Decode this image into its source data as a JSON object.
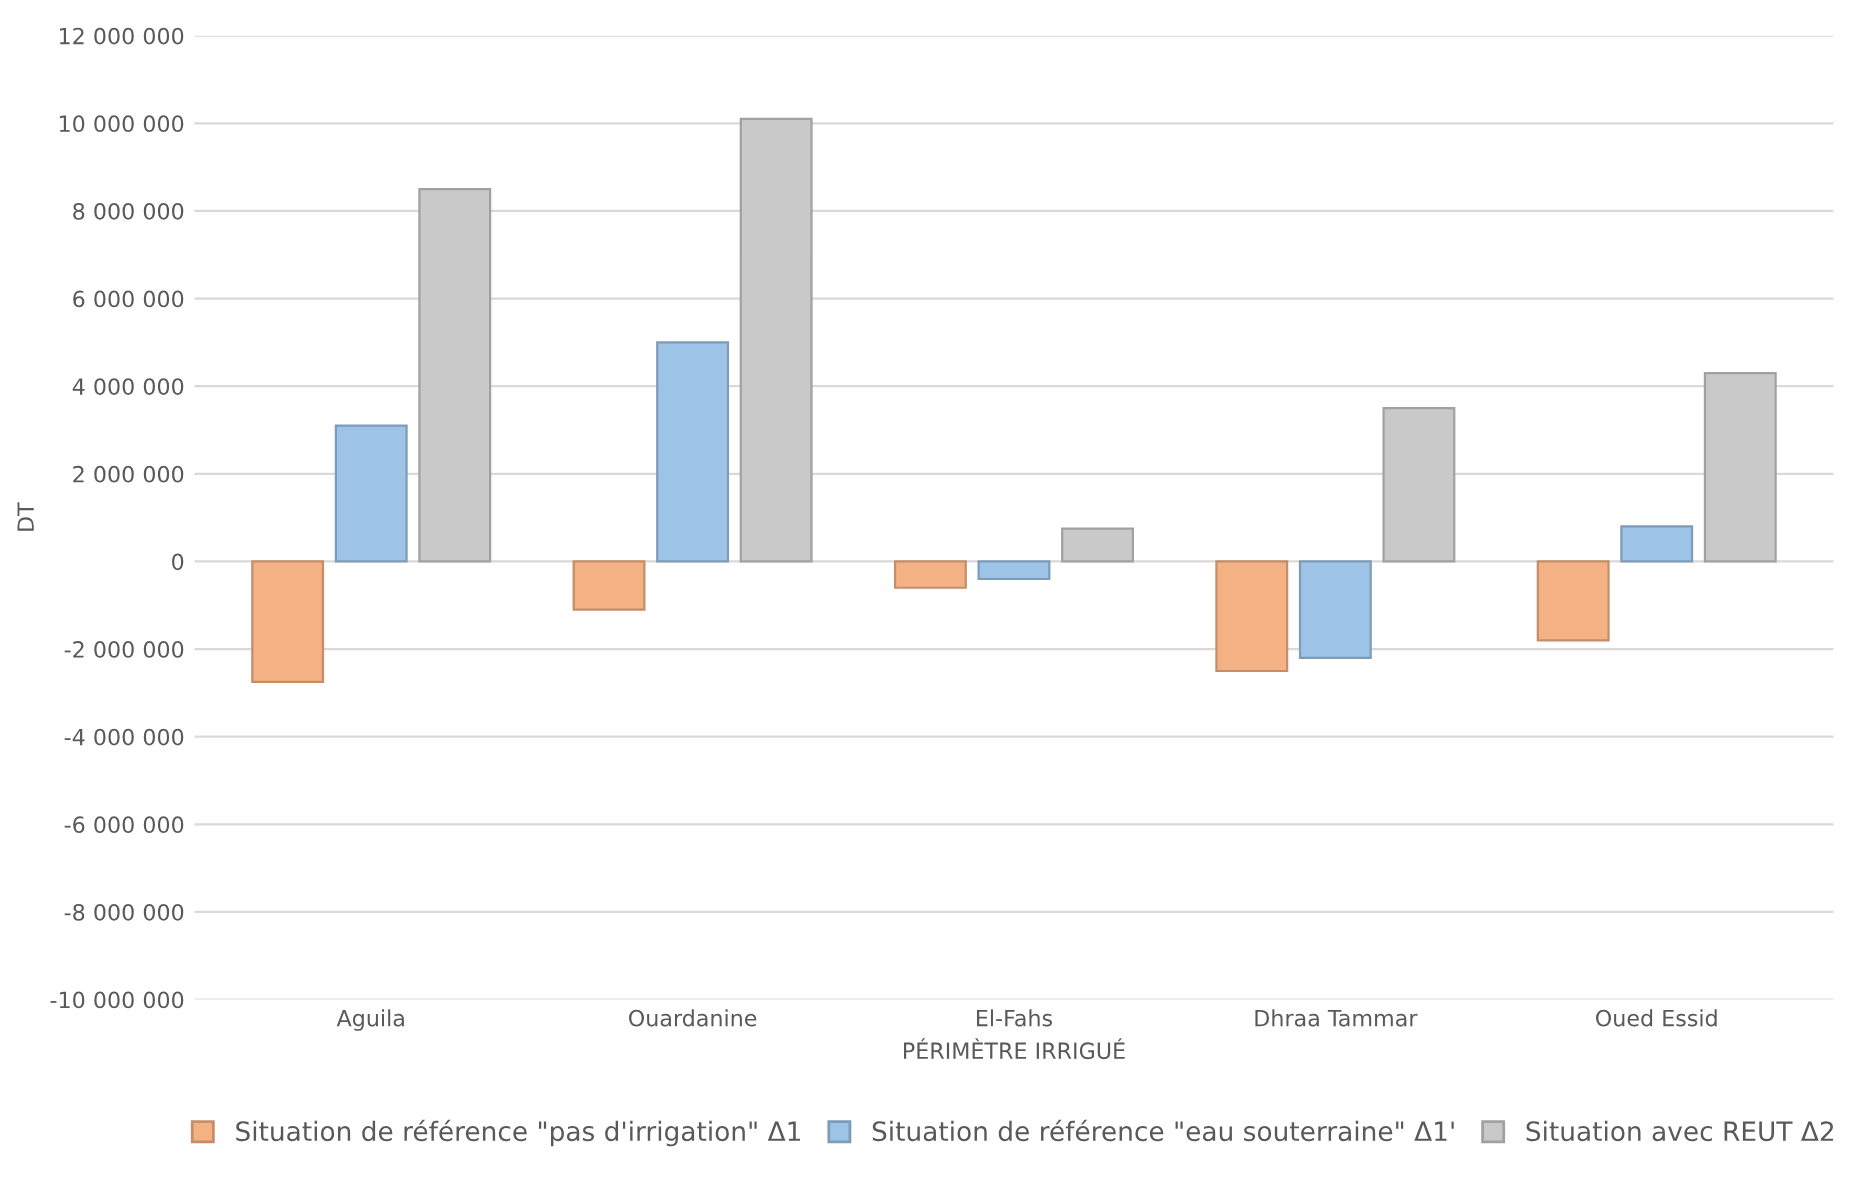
{
  "chart_data": {
    "type": "bar",
    "xlabel": "PÉRIMÈTRE IRRIGUÉ",
    "ylabel": "DT",
    "categories": [
      "Aguila",
      "Ouardanine",
      "El-Fahs",
      "Dhraa Tammar",
      "Oued Essid"
    ],
    "series": [
      {
        "name": "Situation de référence \"pas d'irrigation\" Δ1",
        "color": "#f4b183",
        "values": [
          -2750000,
          -1100000,
          -600000,
          -2500000,
          -1800000
        ]
      },
      {
        "name": "Situation de référence \"eau souterraine\" Δ1'",
        "color": "#9dc3e6",
        "values": [
          3100000,
          5000000,
          -400000,
          -2200000,
          800000
        ]
      },
      {
        "name": "Situation avec REUT Δ2",
        "color": "#c9c9c9",
        "values": [
          8500000,
          10100000,
          750000,
          3500000,
          4300000
        ]
      }
    ],
    "ylim": [
      -10000000,
      12000000
    ],
    "yticks": [
      {
        "value": -10000000,
        "label": "-10 000 000"
      },
      {
        "value": -8000000,
        "label": "-8 000 000"
      },
      {
        "value": -6000000,
        "label": "-6 000 000"
      },
      {
        "value": -4000000,
        "label": "-4 000 000"
      },
      {
        "value": -2000000,
        "label": "-2 000 000"
      },
      0,
      {
        "value": 2000000,
        "label": "2 000 000"
      },
      {
        "value": 4000000,
        "label": "4 000 000"
      },
      {
        "value": 6000000,
        "label": "6 000 000"
      },
      {
        "value": 8000000,
        "label": "8 000 000"
      },
      {
        "value": 10000000,
        "label": "10 000 000"
      },
      {
        "value": 12000000,
        "label": "12 000 000"
      }
    ],
    "grid": "y",
    "legend": "bottom"
  }
}
